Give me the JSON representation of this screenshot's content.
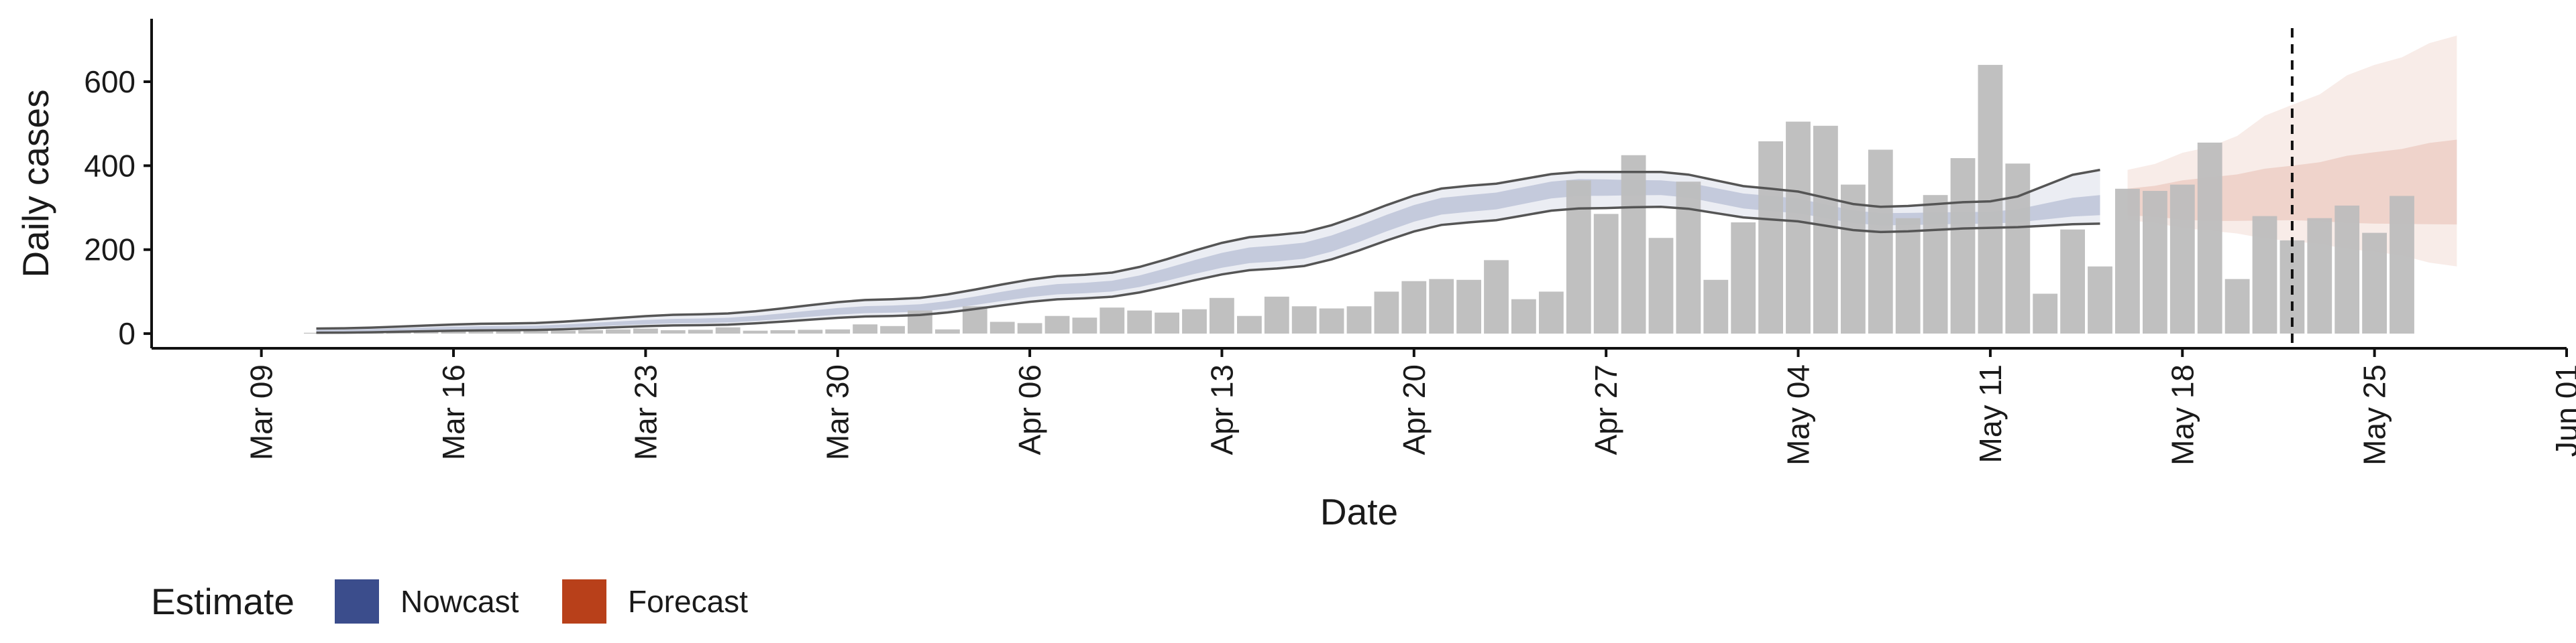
{
  "chart_data": {
    "type": "bar",
    "xlabel": "Date",
    "ylabel": "Daily cases",
    "x_axis": {
      "range": [
        "2020-03-05",
        "2020-06-01"
      ],
      "ticks": [
        "2020-03-09",
        "2020-03-16",
        "2020-03-23",
        "2020-03-30",
        "2020-04-06",
        "2020-04-13",
        "2020-04-20",
        "2020-04-27",
        "2020-05-04",
        "2020-05-11",
        "2020-05-18",
        "2020-05-25",
        "2020-06-01"
      ],
      "tick_labels": [
        "Mar 09",
        "Mar 16",
        "Mar 23",
        "Mar 30",
        "Apr 06",
        "Apr 13",
        "Apr 20",
        "Apr 27",
        "May 04",
        "May 11",
        "May 18",
        "May 25",
        "Jun 01"
      ]
    },
    "y_axis": {
      "ylim": [
        -35,
        750
      ],
      "ticks": [
        0,
        200,
        400,
        600
      ],
      "tick_labels": [
        "0",
        "200",
        "400",
        "600"
      ]
    },
    "grid": false,
    "legend": {
      "position": "bottom-left",
      "title": "Estimate",
      "entries": [
        {
          "label": "Nowcast",
          "color": "#3b4d8c"
        },
        {
          "label": "Forecast",
          "color": "#b8401a"
        }
      ]
    },
    "bar_color": "#bdbdbd",
    "observed_cases": {
      "start_date": "2020-03-11",
      "values": [
        2,
        3,
        4,
        4,
        5,
        6,
        5,
        6,
        8,
        7,
        8,
        10,
        12,
        8,
        9,
        15,
        7,
        8,
        9,
        10,
        22,
        18,
        55,
        10,
        65,
        28,
        25,
        42,
        38,
        62,
        55,
        50,
        58,
        85,
        42,
        88,
        65,
        60,
        65,
        100,
        125,
        130,
        128,
        175,
        82,
        100,
        365,
        285,
        425,
        228,
        362,
        128,
        265,
        458,
        505,
        495,
        355,
        438,
        275,
        330,
        418,
        640,
        405,
        95,
        248,
        160,
        345,
        340,
        355,
        455,
        130,
        280,
        222,
        275,
        305,
        240,
        328
      ]
    },
    "reference_line_date": "2020-05-22",
    "nowcast": {
      "start_date": "2020-03-11",
      "end_date": "2020-05-15",
      "knots": [
        {
          "date": "2020-03-11",
          "median": 6,
          "outer": [
            2,
            12
          ],
          "inner": [
            4,
            9
          ]
        },
        {
          "date": "2020-03-18",
          "median": 14,
          "outer": [
            8,
            24
          ],
          "inner": [
            11,
            18
          ]
        },
        {
          "date": "2020-03-25",
          "median": 30,
          "outer": [
            20,
            46
          ],
          "inner": [
            25,
            36
          ]
        },
        {
          "date": "2020-04-01",
          "median": 58,
          "outer": [
            42,
            82
          ],
          "inner": [
            50,
            67
          ]
        },
        {
          "date": "2020-04-08",
          "median": 108,
          "outer": [
            84,
            140
          ],
          "inner": [
            96,
            121
          ]
        },
        {
          "date": "2020-04-15",
          "median": 190,
          "outer": [
            155,
            235
          ],
          "inner": [
            172,
            210
          ]
        },
        {
          "date": "2020-04-22",
          "median": 310,
          "outer": [
            265,
            352
          ],
          "inner": [
            290,
            330
          ]
        },
        {
          "date": "2020-04-26",
          "median": 350,
          "outer": [
            298,
            385
          ],
          "inner": [
            328,
            368
          ]
        },
        {
          "date": "2020-04-29",
          "median": 348,
          "outer": [
            302,
            385
          ],
          "inner": [
            330,
            365
          ]
        },
        {
          "date": "2020-05-03",
          "median": 310,
          "outer": [
            272,
            345
          ],
          "inner": [
            292,
            328
          ]
        },
        {
          "date": "2020-05-07",
          "median": 272,
          "outer": [
            242,
            302
          ],
          "inner": [
            258,
            287
          ]
        },
        {
          "date": "2020-05-11",
          "median": 275,
          "outer": [
            252,
            315
          ],
          "inner": [
            262,
            290
          ]
        },
        {
          "date": "2020-05-15",
          "median": 305,
          "outer": [
            262,
            390
          ],
          "inner": [
            282,
            330
          ]
        }
      ]
    },
    "forecast": {
      "start_date": "2020-05-16",
      "end_date": "2020-05-28",
      "knots": [
        {
          "date": "2020-05-16",
          "outer": [
            270,
            390
          ],
          "inner": [
            282,
            345
          ]
        },
        {
          "date": "2020-05-19",
          "outer": [
            245,
            445
          ],
          "inner": [
            268,
            372
          ]
        },
        {
          "date": "2020-05-22",
          "outer": [
            220,
            545
          ],
          "inner": [
            270,
            400
          ]
        },
        {
          "date": "2020-05-25",
          "outer": [
            195,
            640
          ],
          "inner": [
            262,
            432
          ]
        },
        {
          "date": "2020-05-28",
          "outer": [
            160,
            710
          ],
          "inner": [
            260,
            462
          ]
        }
      ]
    }
  }
}
